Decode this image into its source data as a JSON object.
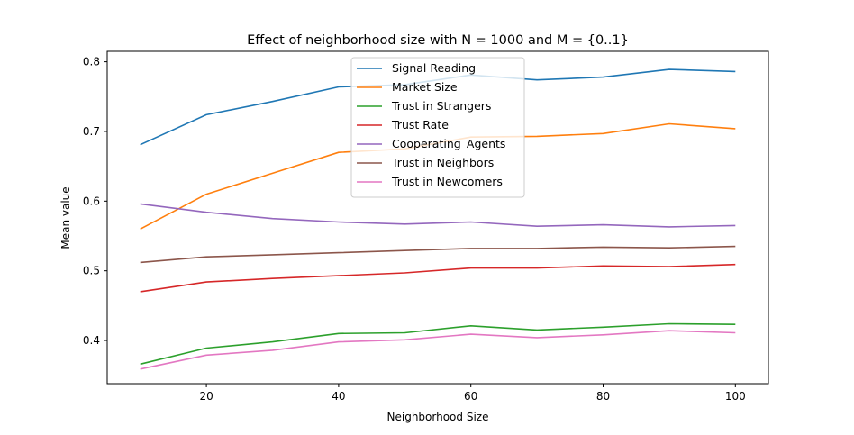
{
  "chart_data": {
    "type": "line",
    "title": "Effect of neighborhood size with N = 1000 and  M = {0..1}",
    "xlabel": "Neighborhood Size",
    "ylabel": "Mean value",
    "x": [
      10,
      20,
      30,
      40,
      50,
      60,
      70,
      80,
      90,
      100
    ],
    "xlim": [
      5,
      105
    ],
    "ylim": [
      0.338,
      0.815
    ],
    "xticks": [
      20,
      40,
      60,
      80,
      100
    ],
    "xtick_labels": [
      "20",
      "40",
      "60",
      "80",
      "100"
    ],
    "yticks": [
      0.4,
      0.5,
      0.6,
      0.7,
      0.8
    ],
    "ytick_labels": [
      "0.4",
      "0.5",
      "0.6",
      "0.7",
      "0.8"
    ],
    "grid": false,
    "legend_position": "top-center",
    "series": [
      {
        "name": "Signal Reading",
        "color": "#1f77b4",
        "values": [
          0.681,
          0.724,
          0.743,
          0.764,
          0.767,
          0.781,
          0.774,
          0.778,
          0.789,
          0.786
        ]
      },
      {
        "name": "Market Size",
        "color": "#ff7f0e",
        "values": [
          0.56,
          0.61,
          0.64,
          0.67,
          0.675,
          0.692,
          0.693,
          0.697,
          0.711,
          0.704
        ]
      },
      {
        "name": "Trust in Strangers",
        "color": "#2ca02c",
        "values": [
          0.366,
          0.389,
          0.398,
          0.41,
          0.411,
          0.421,
          0.415,
          0.419,
          0.424,
          0.423
        ]
      },
      {
        "name": "Trust Rate",
        "color": "#d62728",
        "values": [
          0.47,
          0.484,
          0.489,
          0.493,
          0.497,
          0.504,
          0.504,
          0.507,
          0.506,
          0.509
        ]
      },
      {
        "name": "Cooperating_Agents",
        "color": "#9467bd",
        "values": [
          0.596,
          0.584,
          0.575,
          0.57,
          0.567,
          0.57,
          0.564,
          0.566,
          0.563,
          0.565
        ]
      },
      {
        "name": "Trust in Neighbors",
        "color": "#8c564b",
        "values": [
          0.512,
          0.52,
          0.523,
          0.526,
          0.529,
          0.532,
          0.532,
          0.534,
          0.533,
          0.535
        ]
      },
      {
        "name": "Trust in Newcomers",
        "color": "#e377c2",
        "values": [
          0.359,
          0.379,
          0.386,
          0.398,
          0.401,
          0.409,
          0.404,
          0.408,
          0.414,
          0.411
        ]
      }
    ]
  }
}
